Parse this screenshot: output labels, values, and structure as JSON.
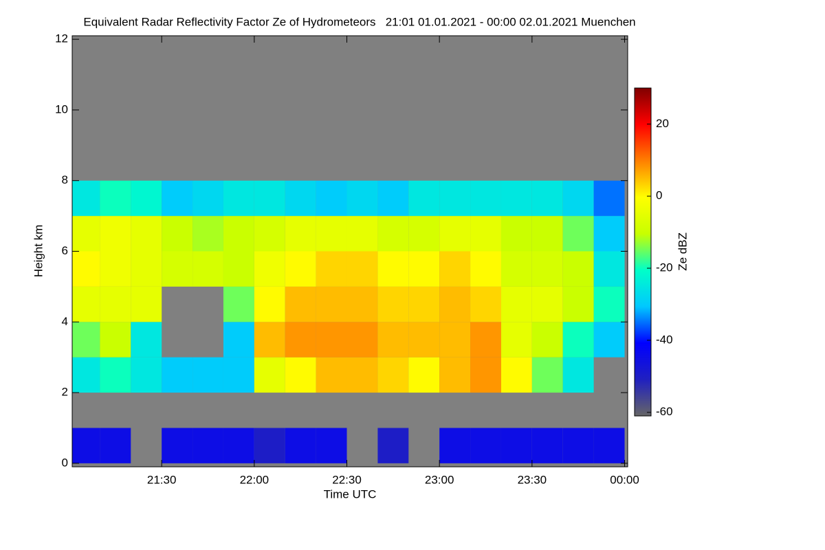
{
  "chart_data": {
    "type": "heatmap",
    "title": "Equivalent Radar Reflectivity Factor Ze of Hydrometeors   21:01 01.01.2021 - 00:00 02.01.2021 Muenchen",
    "xlabel": "Time UTC",
    "ylabel": "Height km",
    "colorbar_label": "Ze dBZ",
    "x": [
      5,
      15,
      25,
      35,
      45,
      55,
      65,
      75,
      85,
      95,
      105,
      115,
      125,
      135,
      145,
      155,
      165,
      175
    ],
    "y": [
      0.5,
      1.5,
      2.5,
      3.5,
      4.5,
      5.5,
      6.5,
      7.5,
      8.5,
      9.5,
      10.5,
      11.5
    ],
    "z": [
      [
        -45,
        -45,
        null,
        -45,
        -45,
        -45,
        -50,
        -45,
        -45,
        null,
        -50,
        null,
        -45,
        -45,
        -45,
        -45,
        -45,
        -45
      ],
      [
        null,
        null,
        null,
        null,
        null,
        null,
        null,
        null,
        null,
        null,
        null,
        null,
        null,
        null,
        null,
        null,
        null,
        null
      ],
      [
        -25,
        -20,
        -25,
        -30,
        -30,
        -30,
        -5,
        0,
        5,
        5,
        3,
        0,
        5,
        8,
        0,
        -15,
        -25,
        null
      ],
      [
        -15,
        -10,
        -25,
        null,
        null,
        -30,
        5,
        8,
        8,
        8,
        5,
        5,
        5,
        8,
        -5,
        -10,
        -20,
        -30
      ],
      [
        -5,
        -5,
        -5,
        null,
        null,
        -15,
        0,
        5,
        5,
        5,
        3,
        3,
        5,
        3,
        -5,
        -5,
        -10,
        -20
      ],
      [
        0,
        -3,
        -5,
        -8,
        -8,
        -10,
        -3,
        0,
        3,
        3,
        0,
        0,
        3,
        0,
        -8,
        -8,
        -10,
        -25
      ],
      [
        -5,
        -3,
        -5,
        -10,
        -12,
        -10,
        -8,
        -5,
        -5,
        -5,
        -8,
        -8,
        -5,
        -5,
        -10,
        -10,
        -15,
        -30
      ],
      [
        -25,
        -20,
        -22,
        -30,
        -28,
        -25,
        -25,
        -28,
        -30,
        -28,
        -30,
        -25,
        -25,
        -25,
        -25,
        -25,
        -28,
        -35
      ],
      [
        null,
        null,
        null,
        null,
        null,
        null,
        null,
        null,
        null,
        null,
        null,
        null,
        null,
        null,
        null,
        null,
        null,
        null
      ],
      [
        null,
        null,
        null,
        null,
        null,
        null,
        null,
        null,
        null,
        null,
        null,
        null,
        null,
        null,
        null,
        null,
        null,
        null
      ],
      [
        null,
        null,
        null,
        null,
        null,
        null,
        null,
        null,
        null,
        null,
        null,
        null,
        null,
        null,
        null,
        null,
        null,
        null
      ],
      [
        null,
        null,
        null,
        null,
        null,
        null,
        null,
        null,
        null,
        null,
        null,
        null,
        null,
        null,
        null,
        null,
        null,
        null
      ]
    ],
    "xlim": [
      1,
      181
    ],
    "xticks": [
      {
        "value": 30,
        "label": "21:30"
      },
      {
        "value": 60,
        "label": "22:00"
      },
      {
        "value": 90,
        "label": "22:30"
      },
      {
        "value": 120,
        "label": "23:00"
      },
      {
        "value": 150,
        "label": "23:30"
      },
      {
        "value": 180,
        "label": "00:00"
      }
    ],
    "ylim": [
      -0.1,
      12.1
    ],
    "yticks": [
      0,
      2,
      4,
      6,
      8,
      10,
      12
    ],
    "clim": [
      -61,
      30
    ],
    "cticks": [
      -60,
      -40,
      -20,
      0,
      20
    ],
    "colormap": [
      "#666666",
      "#2020c0",
      "#0000ff",
      "#00c8ff",
      "#00ffc8",
      "#c8ff00",
      "#ffff00",
      "#ff8000",
      "#ff0000",
      "#800000"
    ],
    "background": "#808080"
  }
}
